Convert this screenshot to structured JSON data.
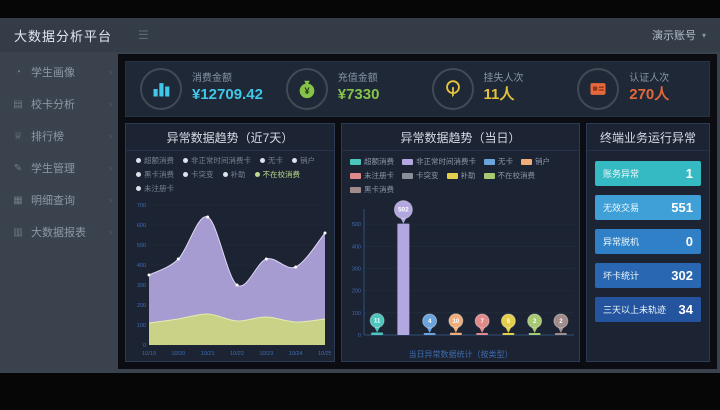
{
  "header": {
    "brand": "大数据分析平台",
    "user": "演示账号",
    "caret": "▾",
    "menu_icon": "☰"
  },
  "sidebar": {
    "items": [
      {
        "label": "学生画像",
        "icon": "student-portrait-icon",
        "glyph": "◔"
      },
      {
        "label": "校卡分析",
        "icon": "card-analysis-icon",
        "glyph": "▤"
      },
      {
        "label": "排行榜",
        "icon": "ranking-icon",
        "glyph": "♕"
      },
      {
        "label": "学生管理",
        "icon": "student-manage-icon",
        "glyph": "✎"
      },
      {
        "label": "明细查询",
        "icon": "detail-query-icon",
        "glyph": "▦"
      },
      {
        "label": "大数据报表",
        "icon": "report-icon",
        "glyph": "▥"
      }
    ]
  },
  "kpis": [
    {
      "label": "消费金额",
      "value": "¥12709.42",
      "color": "#3fc8ea",
      "icon": "consume-amount-icon"
    },
    {
      "label": "充值金额",
      "value": "¥7330",
      "color": "#86c34a",
      "icon": "recharge-amount-icon"
    },
    {
      "label": "挂失人次",
      "value": "11人",
      "color": "#e4c43f",
      "icon": "loss-report-icon"
    },
    {
      "label": "认证人次",
      "value": "270人",
      "color": "#e4683c",
      "icon": "auth-count-icon"
    }
  ],
  "chart_data": [
    {
      "type": "area",
      "title": "异常数据趋势（近7天）",
      "x": [
        "10/19",
        "10/20",
        "10/21",
        "10/22",
        "10/23",
        "10/24",
        "10/25"
      ],
      "series": [
        {
          "name": "非正常时间消费卡",
          "color": "#b2a7e0",
          "line": "#ded8f4",
          "values": [
            350,
            430,
            640,
            300,
            430,
            390,
            560
          ]
        },
        {
          "name": "不在校消费",
          "color": "#ccd77f",
          "line": "#e4ecb2",
          "values": [
            110,
            130,
            155,
            120,
            140,
            115,
            130
          ]
        }
      ],
      "legend": [
        "超额消费",
        "非正常时间消费卡",
        "无卡",
        "销户",
        "黑卡消费",
        "卡突变",
        "补助",
        "不在校消费",
        "未注册卡"
      ],
      "active_legend": "不在校消费",
      "ylim": [
        0,
        700
      ],
      "ytick_step": 100,
      "grid": true,
      "legend_position": "top"
    },
    {
      "type": "bar",
      "title": "异常数据趋势（当日）",
      "categories": [
        "超额消费",
        "非正常时间消费卡",
        "无卡",
        "销户",
        "未注册卡",
        "补助",
        "不在校消费",
        "黑卡消费"
      ],
      "values": [
        11,
        502,
        4,
        10,
        7,
        6,
        2,
        2
      ],
      "colors": [
        "#4cc5bd",
        "#b2a7e0",
        "#6ba3dd",
        "#f0ac79",
        "#e08a8a",
        "#e3cf4b",
        "#a7c971",
        "#a18b8b"
      ],
      "legend": [
        {
          "label": "超额消费",
          "color": "#4cc5bd"
        },
        {
          "label": "非正常时间消费卡",
          "color": "#b2a7e0"
        },
        {
          "label": "无卡",
          "color": "#6ba3dd"
        },
        {
          "label": "销户",
          "color": "#f0ac79"
        },
        {
          "label": "未注册卡",
          "color": "#e08a8a"
        },
        {
          "label": "卡突变",
          "color": "#8a9099"
        },
        {
          "label": "补助",
          "color": "#e3cf4b"
        },
        {
          "label": "不在校消费",
          "color": "#a7c971"
        },
        {
          "label": "黑卡消费",
          "color": "#a18b8b"
        }
      ],
      "ylim": [
        0,
        550
      ],
      "ytick_step": 100,
      "caption": "当日异常数据统计（按类型）",
      "grid": true,
      "legend_position": "top"
    }
  ],
  "terminal_panel": {
    "title": "终端业务运行异常",
    "items": [
      {
        "label": "账务异常",
        "value": "1",
        "color": "#35b9c3"
      },
      {
        "label": "无效交易",
        "value": "551",
        "color": "#3fa0d8"
      },
      {
        "label": "异常脱机",
        "value": "0",
        "color": "#2f80c6"
      },
      {
        "label": "坏卡统计",
        "value": "302",
        "color": "#2a67b2"
      },
      {
        "label": "三天以上未轨迹",
        "value": "34",
        "color": "#24549e"
      }
    ]
  }
}
